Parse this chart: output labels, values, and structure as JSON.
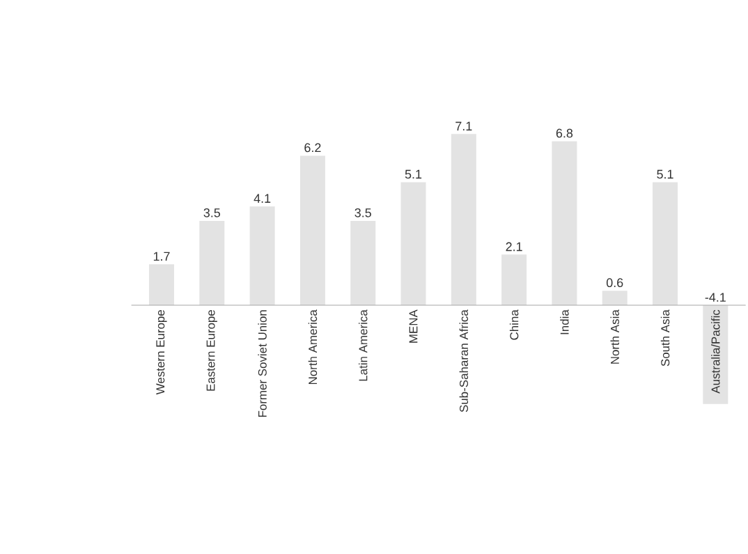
{
  "chart_data": {
    "type": "bar",
    "categories": [
      "Western  Europe",
      "Eastern Europe",
      "Former Soviet Union",
      "North America",
      "Latin America",
      "MENA",
      "Sub-Saharan Africa",
      "China",
      "India",
      "North Asia",
      "South Asia",
      "Australia/Pacific"
    ],
    "values": [
      1.7,
      3.5,
      4.1,
      6.2,
      3.5,
      5.1,
      7.1,
      2.1,
      6.8,
      0.6,
      5.1,
      -4.1
    ],
    "color": "#e3e3e3",
    "data_labels": true
  }
}
